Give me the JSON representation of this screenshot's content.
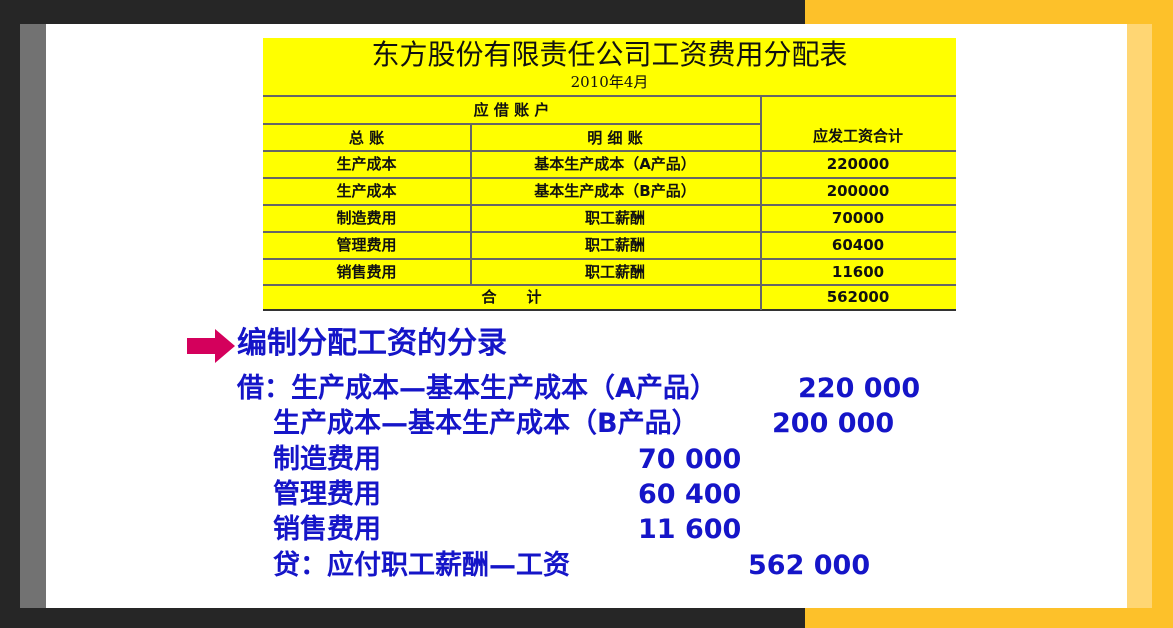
{
  "table": {
    "title": "东方股份有限责任公司工资费用分配表",
    "subtitle": "2010年4月",
    "header_group": "应 借 账 户",
    "col_general": "总 账",
    "col_detail": "明 细 账",
    "col_amount": "应发工资合计",
    "rows": [
      {
        "general": "生产成本",
        "detail": "基本生产成本（A产品）",
        "amount": "220000"
      },
      {
        "general": "生产成本",
        "detail": "基本生产成本（B产品）",
        "amount": "200000"
      },
      {
        "general": "制造费用",
        "detail": "职工薪酬",
        "amount": "70000"
      },
      {
        "general": "管理费用",
        "detail": "职工薪酬",
        "amount": "60400"
      },
      {
        "general": "销售费用",
        "detail": "职工薪酬",
        "amount": "11600"
      }
    ],
    "total_label": "合　　计",
    "total_amount": "562000"
  },
  "entry": {
    "heading": "编制分配工资的分录",
    "arrow_icon": "right-arrow",
    "arrow_color": "#d4005c",
    "text_color": "#1515c8",
    "lines": [
      {
        "account": "借：生产成本—基本生产成本（A产品）",
        "amount": "220 000"
      },
      {
        "account": "生产成本—基本生产成本（B产品）",
        "amount": "200 000"
      },
      {
        "account": "制造费用",
        "amount": "70 000"
      },
      {
        "account": "管理费用",
        "amount": "60 400"
      },
      {
        "account": "销售费用",
        "amount": "11 600"
      },
      {
        "account": "贷：应付职工薪酬—工资",
        "amount": "562 000"
      }
    ]
  }
}
